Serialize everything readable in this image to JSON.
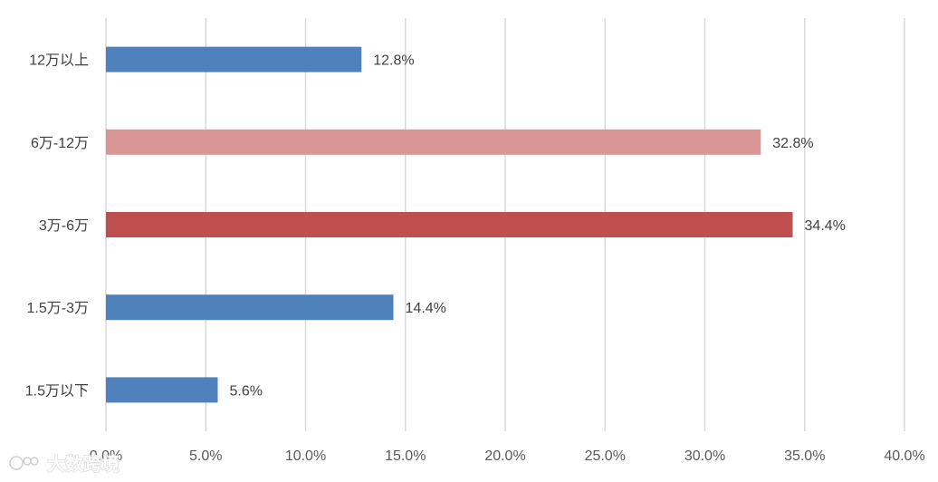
{
  "chart_data": {
    "type": "bar",
    "orientation": "horizontal",
    "categories": [
      "12万以上",
      "6万-12万",
      "3万-6万",
      "1.5万-3万",
      "1.5万以下"
    ],
    "values": [
      12.8,
      32.8,
      34.4,
      14.4,
      5.6
    ],
    "data_labels": [
      "12.8%",
      "32.8%",
      "34.4%",
      "14.4%",
      "5.6%"
    ],
    "bar_colors": [
      "#4f81bd",
      "#d99694",
      "#c0504d",
      "#4f81bd",
      "#4f81bd"
    ],
    "xlim": [
      0,
      40
    ],
    "xticks": [
      0,
      5,
      10,
      15,
      20,
      25,
      30,
      35,
      40
    ],
    "xtick_labels": [
      "0.0%",
      "5.0%",
      "10.0%",
      "15.0%",
      "20.0%",
      "25.0%",
      "30.0%",
      "35.0%",
      "40.0%"
    ],
    "grid": true,
    "legend": "none"
  },
  "watermark": {
    "text": "大数跨境"
  }
}
